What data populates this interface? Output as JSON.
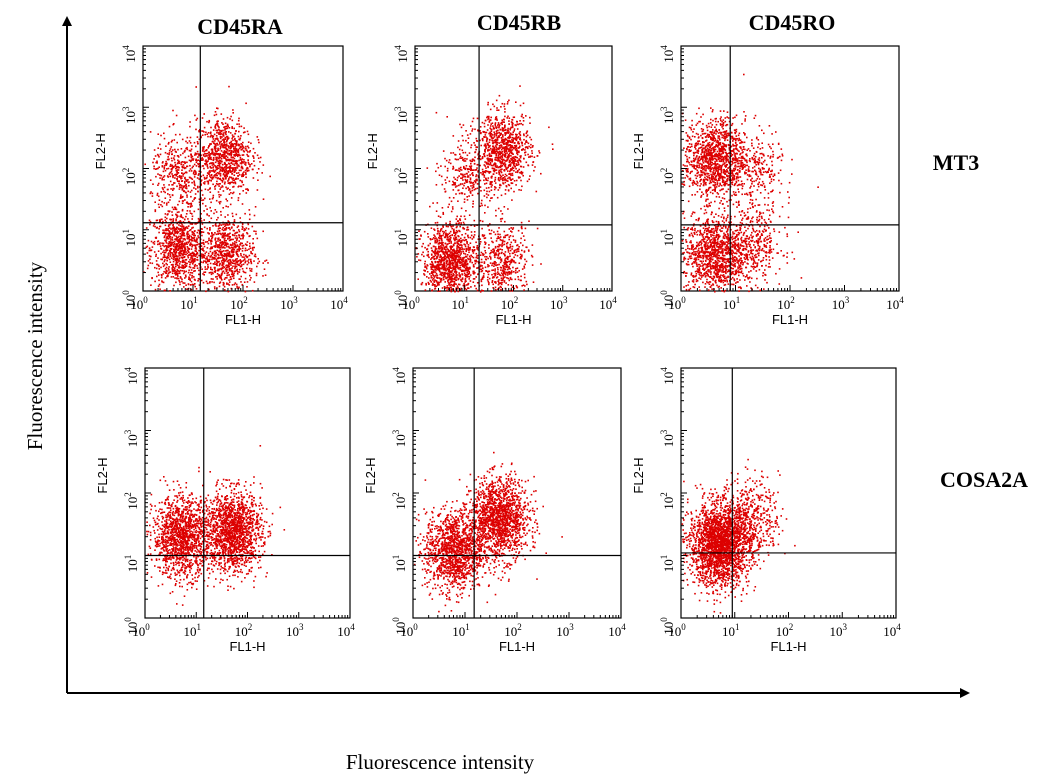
{
  "figure": {
    "column_headers": [
      "CD45RA",
      "CD45RB",
      "CD45RO"
    ],
    "row_headers": [
      "MT3",
      "COSA2A"
    ],
    "y_axis_title": "Fluorescence intensity",
    "x_axis_title": "Fluorescence intensity"
  },
  "colors": {
    "points": "#dd0000",
    "axes": "#000000",
    "background": "#ffffff"
  },
  "chart_data": [
    {
      "type": "scatter",
      "row": "MT3",
      "column": "CD45RA",
      "xlabel": "FL1-H",
      "ylabel": "FL2-H",
      "scale": "log",
      "xlim": [
        1,
        10000
      ],
      "ylim": [
        1,
        10000
      ],
      "xticks": [
        "10^0",
        "10^1",
        "10^2",
        "10^3",
        "10^4"
      ],
      "yticks": [
        "10^0",
        "10^1",
        "10^2",
        "10^3",
        "10^4"
      ],
      "quadrant_gate": {
        "x": 14,
        "y": 13
      },
      "populations": [
        {
          "x_center": 5,
          "y_center": 5,
          "count": 900
        },
        {
          "x_center": 45,
          "y_center": 4,
          "count": 800
        },
        {
          "x_center": 40,
          "y_center": 160,
          "count": 900
        },
        {
          "x_center": 5,
          "y_center": 80,
          "count": 400
        }
      ]
    },
    {
      "type": "scatter",
      "row": "MT3",
      "column": "CD45RB",
      "xlabel": "FL1-H",
      "ylabel": "FL2-H",
      "scale": "log",
      "xlim": [
        1,
        10000
      ],
      "ylim": [
        1,
        10000
      ],
      "xticks": [
        "10^0",
        "10^1",
        "10^2",
        "10^3",
        "10^4"
      ],
      "yticks": [
        "10^0",
        "10^1",
        "10^2",
        "10^3",
        "10^4"
      ],
      "quadrant_gate": {
        "x": 20,
        "y": 12
      },
      "populations": [
        {
          "x_center": 5,
          "y_center": 3,
          "count": 1200
        },
        {
          "x_center": 60,
          "y_center": 3,
          "count": 500
        },
        {
          "x_center": 60,
          "y_center": 200,
          "count": 900
        },
        {
          "x_center": 12,
          "y_center": 80,
          "count": 300
        }
      ]
    },
    {
      "type": "scatter",
      "row": "MT3",
      "column": "CD45RO",
      "xlabel": "FL1-H",
      "ylabel": "FL2-H",
      "scale": "log",
      "xlim": [
        1,
        10000
      ],
      "ylim": [
        1,
        10000
      ],
      "xticks": [
        "10^0",
        "10^1",
        "10^2",
        "10^3",
        "10^4"
      ],
      "yticks": [
        "10^0",
        "10^1",
        "10^2",
        "10^3",
        "10^4"
      ],
      "quadrant_gate": {
        "x": 8,
        "y": 12
      },
      "populations": [
        {
          "x_center": 4,
          "y_center": 150,
          "count": 1100
        },
        {
          "x_center": 4,
          "y_center": 4,
          "count": 1100
        },
        {
          "x_center": 20,
          "y_center": 6,
          "count": 400
        },
        {
          "x_center": 20,
          "y_center": 100,
          "count": 300
        }
      ]
    },
    {
      "type": "scatter",
      "row": "COSA2A",
      "column": "CD45RA",
      "xlabel": "FL1-H",
      "ylabel": "FL2-H",
      "scale": "log",
      "xlim": [
        1,
        10000
      ],
      "ylim": [
        1,
        10000
      ],
      "xticks": [
        "10^0",
        "10^1",
        "10^2",
        "10^3",
        "10^4"
      ],
      "yticks": [
        "10^0",
        "10^1",
        "10^2",
        "10^3",
        "10^4"
      ],
      "quadrant_gate": {
        "x": 14,
        "y": 10
      },
      "populations": [
        {
          "x_center": 5,
          "y_center": 20,
          "count": 1300
        },
        {
          "x_center": 50,
          "y_center": 25,
          "count": 1500
        }
      ]
    },
    {
      "type": "scatter",
      "row": "COSA2A",
      "column": "CD45RB",
      "xlabel": "FL1-H",
      "ylabel": "FL2-H",
      "scale": "log",
      "xlim": [
        1,
        10000
      ],
      "ylim": [
        1,
        10000
      ],
      "xticks": [
        "10^0",
        "10^1",
        "10^2",
        "10^3",
        "10^4"
      ],
      "yticks": [
        "10^0",
        "10^1",
        "10^2",
        "10^3",
        "10^4"
      ],
      "quadrant_gate": {
        "x": 15,
        "y": 10
      },
      "populations": [
        {
          "x_center": 6,
          "y_center": 12,
          "count": 1300
        },
        {
          "x_center": 45,
          "y_center": 40,
          "count": 1500
        }
      ]
    },
    {
      "type": "scatter",
      "row": "COSA2A",
      "column": "CD45RO",
      "xlabel": "FL1-H",
      "ylabel": "FL2-H",
      "scale": "log",
      "xlim": [
        1,
        10000
      ],
      "ylim": [
        1,
        10000
      ],
      "xticks": [
        "10^0",
        "10^1",
        "10^2",
        "10^3",
        "10^4"
      ],
      "yticks": [
        "10^0",
        "10^1",
        "10^2",
        "10^3",
        "10^4"
      ],
      "quadrant_gate": {
        "x": 9,
        "y": 11
      },
      "populations": [
        {
          "x_center": 5,
          "y_center": 15,
          "count": 2200
        },
        {
          "x_center": 18,
          "y_center": 40,
          "count": 500
        }
      ]
    }
  ]
}
